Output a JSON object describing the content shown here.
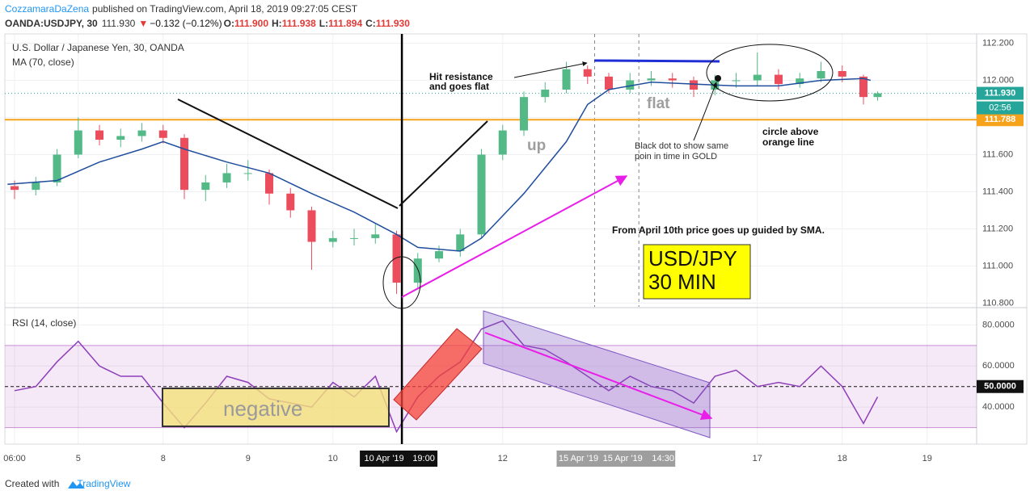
{
  "header": {
    "author": "CozzamaraDaZena",
    "published": "published on TradingView.com, April 18, 2019 09:27:05 CEST",
    "symbol": "OANDA:USDJPY, 30",
    "last": "111.930",
    "arrow": "▼",
    "change": "−0.132 (−0.12%)",
    "ohlc": [
      {
        "key": "O:",
        "value": "111.900"
      },
      {
        "key": "H:",
        "value": "111.938"
      },
      {
        "key": "L:",
        "value": "111.894"
      },
      {
        "key": "C:",
        "value": "111.930"
      }
    ]
  },
  "chart_data": [
    {
      "type": "candlestick",
      "title": "U.S. Dollar / Japanese Yen, 30, OANDA",
      "x": [
        0,
        6,
        12,
        18,
        24,
        30,
        36,
        42,
        48,
        54,
        60,
        66,
        72,
        78,
        84,
        90,
        96,
        102,
        108,
        114,
        120,
        126,
        132,
        138,
        144,
        150,
        156,
        162,
        168,
        174,
        180,
        186,
        192,
        198,
        204,
        210,
        216,
        222,
        228,
        234,
        240,
        244
      ],
      "open": [
        111.43,
        111.41,
        111.45,
        111.6,
        111.73,
        111.68,
        111.7,
        111.73,
        111.69,
        111.41,
        111.45,
        111.5,
        111.5,
        111.39,
        111.3,
        111.13,
        111.15,
        111.15,
        111.17,
        110.91,
        111.04,
        111.08,
        111.17,
        111.6,
        111.73,
        111.91,
        111.95,
        112.06,
        112.02,
        111.95,
        112.0,
        112.01,
        112.0,
        111.95,
        112.0,
        112.0,
        112.03,
        111.98,
        112.01,
        112.05,
        112.02,
        111.91
      ],
      "high": [
        111.46,
        111.48,
        111.63,
        111.8,
        111.76,
        111.74,
        111.77,
        111.76,
        111.71,
        111.49,
        111.55,
        111.57,
        111.52,
        111.42,
        111.32,
        111.19,
        111.2,
        111.23,
        111.19,
        111.07,
        111.11,
        111.2,
        111.63,
        111.76,
        111.94,
        111.99,
        112.1,
        112.08,
        112.04,
        112.04,
        112.05,
        112.04,
        112.02,
        112.03,
        112.04,
        112.15,
        112.06,
        112.04,
        112.1,
        112.08,
        112.03,
        111.94
      ],
      "low": [
        111.36,
        111.38,
        111.43,
        111.58,
        111.65,
        111.64,
        111.67,
        111.66,
        111.36,
        111.35,
        111.42,
        111.46,
        111.33,
        111.26,
        110.98,
        111.1,
        111.11,
        111.12,
        110.85,
        110.88,
        111.02,
        111.05,
        111.15,
        111.57,
        111.7,
        111.88,
        111.93,
        111.98,
        111.93,
        111.93,
        111.97,
        111.96,
        111.91,
        111.92,
        111.96,
        111.97,
        111.95,
        111.96,
        111.99,
        111.99,
        111.87,
        111.89
      ],
      "close": [
        111.41,
        111.45,
        111.6,
        111.73,
        111.68,
        111.7,
        111.73,
        111.69,
        111.41,
        111.45,
        111.5,
        111.5,
        111.39,
        111.3,
        111.13,
        111.15,
        111.15,
        111.17,
        110.91,
        111.04,
        111.08,
        111.17,
        111.6,
        111.73,
        111.91,
        111.95,
        112.06,
        112.02,
        111.95,
        112.0,
        112.01,
        112.0,
        111.95,
        112.0,
        112.0,
        112.03,
        111.98,
        112.01,
        112.05,
        112.02,
        111.91,
        111.93
      ],
      "up_color": "#53b987",
      "down_color": "#eb4d5c",
      "series": [
        {
          "name": "MA (70, close)",
          "color": "#1f4e9c",
          "x": [
            -2,
            12,
            24,
            36,
            42,
            48,
            60,
            72,
            84,
            96,
            108,
            114,
            126,
            132,
            144,
            156,
            162,
            168,
            180,
            192,
            204,
            216,
            228,
            240,
            242
          ],
          "values": [
            111.44,
            111.46,
            111.56,
            111.63,
            111.67,
            111.63,
            111.56,
            111.5,
            111.39,
            111.29,
            111.17,
            111.1,
            111.08,
            111.15,
            111.39,
            111.67,
            111.87,
            111.95,
            111.99,
            111.98,
            111.97,
            111.97,
            112.0,
            112.01,
            112.0
          ]
        }
      ],
      "xlim": [
        -2.75,
        272
      ],
      "ylim": [
        110.78,
        112.25
      ],
      "yticks": [
        {
          "value": 110.8,
          "label": "110.800"
        },
        {
          "value": 111.0,
          "label": "111.000"
        },
        {
          "value": 111.2,
          "label": "111.200"
        },
        {
          "value": 111.4,
          "label": "111.400"
        },
        {
          "value": 111.6,
          "label": "111.600"
        },
        {
          "value": 111.8,
          "label": "111.800"
        },
        {
          "value": 112.0,
          "label": "112.000"
        },
        {
          "value": 112.2,
          "label": "112.200"
        }
      ],
      "price_labels": [
        {
          "value": 111.93,
          "label": "111.930",
          "color": "#26a69a",
          "line": "dotted"
        },
        {
          "value": 111.788,
          "label": "111.788",
          "color": "#f7a21b",
          "line": "solid"
        }
      ],
      "countdown": "02:56",
      "grid": true
    },
    {
      "type": "line",
      "x": [
        0,
        6,
        12,
        18,
        24,
        30,
        36,
        42,
        48,
        54,
        60,
        66,
        72,
        78,
        84,
        90,
        96,
        102,
        108,
        114,
        120,
        126,
        132,
        138,
        144,
        150,
        156,
        162,
        168,
        174,
        180,
        186,
        192,
        198,
        204,
        210,
        216,
        222,
        228,
        234,
        240,
        244
      ],
      "series": [
        {
          "name": "RSI (14, close)",
          "color": "#8e3fb8",
          "values": [
            48,
            50,
            62,
            72,
            60,
            55,
            55,
            42,
            30,
            42,
            55,
            52,
            44,
            42,
            40,
            52,
            45,
            55,
            28,
            45,
            55,
            62,
            78,
            82,
            70,
            68,
            62,
            55,
            48,
            55,
            50,
            48,
            42,
            55,
            58,
            50,
            52,
            50,
            60,
            50,
            32,
            45
          ]
        }
      ],
      "band": [
        30,
        70
      ],
      "band_color": "#9c27b0",
      "midline": {
        "value": 50,
        "label": "50.0000"
      },
      "xlim": [
        -2.75,
        272
      ],
      "ylim": [
        22,
        88
      ],
      "yticks": [
        {
          "value": 40,
          "label": "40.0000"
        },
        {
          "value": 60,
          "label": "60.0000"
        },
        {
          "value": 80,
          "label": "80.0000"
        }
      ],
      "xticks": [
        {
          "value": 0,
          "label": "06:00"
        },
        {
          "value": 18,
          "label": "5"
        },
        {
          "value": 42,
          "label": "8"
        },
        {
          "value": 66,
          "label": "9"
        },
        {
          "value": 90,
          "label": "10"
        },
        {
          "value": 138,
          "label": "12"
        },
        {
          "value": 210,
          "label": "17"
        },
        {
          "value": 234,
          "label": "18"
        },
        {
          "value": 258,
          "label": "19"
        }
      ],
      "crosshair": {
        "value": 109.5,
        "labels": [
          "10 Apr '19",
          "19:00"
        ]
      },
      "range_marks": [
        {
          "value": 164,
          "label": "15 Apr '19"
        },
        {
          "value": 176.5,
          "label": "15 Apr '19"
        }
      ],
      "range_time": "14:30",
      "grid": true
    }
  ],
  "annotations": {
    "resistance": [
      "Hit resistance",
      "and goes flat"
    ],
    "up": "up",
    "flat": "flat",
    "dot": [
      "Black dot to show same",
      "poin in time in GOLD"
    ],
    "circle": [
      "circle above",
      "orange line"
    ],
    "sma": "From April 10th price goes up guided by SMA.",
    "box": [
      "USD/JPY",
      "30 MIN"
    ],
    "negative": "negative"
  },
  "footer": {
    "created": "Created with",
    "brand": "TradingView"
  }
}
